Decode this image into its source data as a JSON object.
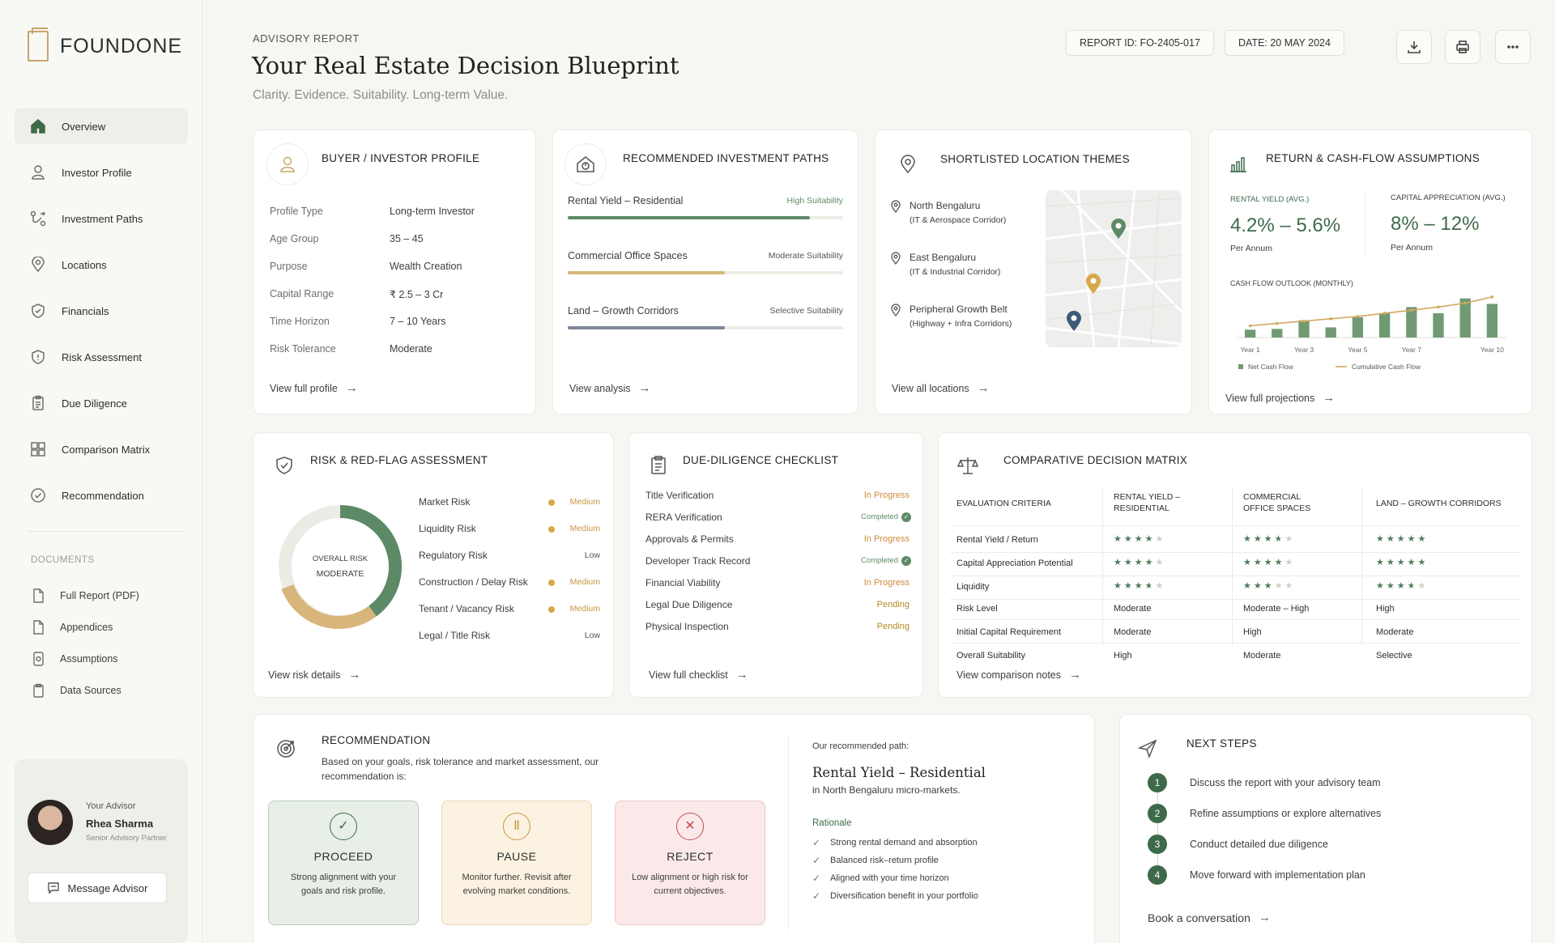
{
  "brand": {
    "name": "FOUNDONE"
  },
  "nav": {
    "items": [
      {
        "label": "Overview",
        "icon": "home-icon"
      },
      {
        "label": "Investor Profile",
        "icon": "user-icon"
      },
      {
        "label": "Investment Paths",
        "icon": "paths-icon"
      },
      {
        "label": "Locations",
        "icon": "location-pin-icon"
      },
      {
        "label": "Financials",
        "icon": "shield-check-icon"
      },
      {
        "label": "Risk Assessment",
        "icon": "shield-alert-icon"
      },
      {
        "label": "Due Diligence",
        "icon": "clipboard-icon"
      },
      {
        "label": "Comparison Matrix",
        "icon": "grid-icon"
      },
      {
        "label": "Recommendation",
        "icon": "check-circle-icon"
      }
    ],
    "documents_label": "DOCUMENTS",
    "documents": [
      {
        "label": "Full Report (PDF)"
      },
      {
        "label": "Appendices"
      },
      {
        "label": "Assumptions"
      },
      {
        "label": "Data Sources"
      }
    ]
  },
  "advisor": {
    "label": "Your Advisor",
    "name": "Rhea Sharma",
    "role": "Senior Advisory Partner",
    "button": "Message Advisor"
  },
  "header": {
    "eyebrow": "ADVISORY REPORT",
    "title": "Your Real Estate Decision Blueprint",
    "subtitle": "Clarity. Evidence. Suitability. Long-term Value.",
    "report_id": "REPORT ID: FO-2405-017",
    "date": "DATE: 20 MAY 2024"
  },
  "profile": {
    "title": "BUYER / INVESTOR PROFILE",
    "rows": [
      {
        "k": "Profile Type",
        "v": "Long-term Investor"
      },
      {
        "k": "Age Group",
        "v": "35 – 45"
      },
      {
        "k": "Purpose",
        "v": "Wealth Creation"
      },
      {
        "k": "Capital Range",
        "v": "₹ 2.5 – 3 Cr"
      },
      {
        "k": "Time Horizon",
        "v": "7 – 10 Years"
      },
      {
        "k": "Risk Tolerance",
        "v": "Moderate"
      }
    ],
    "link": "View full profile"
  },
  "paths": {
    "title": "RECOMMENDED INVESTMENT PATHS",
    "items": [
      {
        "name": "Rental Yield – Residential",
        "suitability": "High Suitability",
        "level": 0.88,
        "color": "#5d8a66",
        "sucolor": "#5d8a66"
      },
      {
        "name": "Commercial Office Spaces",
        "suitability": "Moderate Suitability",
        "level": 0.57,
        "color": "#d8b57a",
        "sucolor": "#555"
      },
      {
        "name": "Land – Growth Corridors",
        "suitability": "Selective Suitability",
        "level": 0.57,
        "color": "#7e869a",
        "sucolor": "#555"
      }
    ],
    "link": "View analysis"
  },
  "locations": {
    "title": "SHORTLISTED LOCATION THEMES",
    "items": [
      {
        "name": "North Bengaluru",
        "sub": "(IT & Aerospace Corridor)"
      },
      {
        "name": "East Bengaluru",
        "sub": "(IT & Industrial Corridor)"
      },
      {
        "name": "Peripheral Growth Belt",
        "sub": "(Highway + Infra Corridors)"
      }
    ],
    "link": "View all locations"
  },
  "returns": {
    "title": "RETURN & CASH-FLOW ASSUMPTIONS",
    "yield_label": "RENTAL YIELD (AVG.)",
    "yield_value": "4.2% – 5.6%",
    "yield_unit": "Per Annum",
    "apprec_label": "CAPITAL APPRECIATION (AVG.)",
    "apprec_value": "8% – 12%",
    "apprec_unit": "Per Annum",
    "chart_title": "CASH FLOW OUTLOOK (MONTHLY)",
    "link": "View full projections"
  },
  "chart_data": {
    "type": "bar",
    "title": "CASH FLOW OUTLOOK (MONTHLY)",
    "categories": [
      "Year 1",
      "Year 2",
      "Year 3",
      "Year 4",
      "Year 5",
      "Year 6",
      "Year 7",
      "Year 8",
      "Year 9",
      "Year 10"
    ],
    "tick_labels": [
      "Year 1",
      "Year 3",
      "Year 5",
      "Year 7",
      "Year 10"
    ],
    "series": [
      {
        "name": "Net Cash Flow",
        "type": "bar",
        "color": "#6f9a72",
        "values": [
          1.0,
          1.1,
          2.2,
          1.3,
          2.6,
          3.1,
          3.9,
          3.1,
          5.0,
          4.3
        ]
      },
      {
        "name": "Cumulative Cash Flow",
        "type": "line",
        "color": "#d4a760",
        "values": [
          1.5,
          1.8,
          2.1,
          2.4,
          2.7,
          3.1,
          3.5,
          3.9,
          4.4,
          5.2
        ]
      }
    ],
    "ylim": [
      0,
      6
    ],
    "legend": "bottom"
  },
  "risk": {
    "title": "RISK & RED-FLAG ASSESSMENT",
    "center_top": "OVERALL RISK",
    "center_bottom": "MODERATE",
    "items": [
      {
        "name": "Market Risk",
        "level": "Medium",
        "dot": true
      },
      {
        "name": "Liquidity Risk",
        "level": "Medium",
        "dot": true
      },
      {
        "name": "Regulatory Risk",
        "level": "Low",
        "dot": false
      },
      {
        "name": "Construction / Delay Risk",
        "level": "Medium",
        "dot": true
      },
      {
        "name": "Tenant / Vacancy Risk",
        "level": "Medium",
        "dot": true
      },
      {
        "name": "Legal / Title Risk",
        "level": "Low",
        "dot": false
      }
    ],
    "link": "View risk details"
  },
  "diligence": {
    "title": "DUE-DILIGENCE CHECKLIST",
    "items": [
      {
        "name": "Title Verification",
        "status": "In Progress",
        "kind": "progress"
      },
      {
        "name": "RERA Verification",
        "status": "Completed",
        "kind": "done"
      },
      {
        "name": "Approvals & Permits",
        "status": "In Progress",
        "kind": "progress"
      },
      {
        "name": "Developer Track Record",
        "status": "Completed",
        "kind": "done"
      },
      {
        "name": "Financial Viability",
        "status": "In Progress",
        "kind": "progress"
      },
      {
        "name": "Legal Due Diligence",
        "status": "Pending",
        "kind": "pending"
      },
      {
        "name": "Physical Inspection",
        "status": "Pending",
        "kind": "pending"
      }
    ],
    "link": "View full checklist"
  },
  "matrix": {
    "title": "COMPARATIVE DECISION MATRIX",
    "criteria_header": "EVALUATION CRITERIA",
    "col_headers": [
      "RENTAL YIELD –\nRESIDENTIAL",
      "COMMERCIAL\nOFFICE SPACES",
      "LAND – GROWTH CORRIDORS"
    ],
    "star_rows": [
      {
        "label": "Rental Yield / Return",
        "stars": [
          4,
          3.5,
          5
        ]
      },
      {
        "label": "Capital Appreciation Potential",
        "stars": [
          4,
          4,
          5
        ]
      },
      {
        "label": "Liquidity",
        "stars": [
          3.5,
          3,
          3.5
        ]
      }
    ],
    "text_rows": [
      {
        "label": "Risk Level",
        "values": [
          "Moderate",
          "Moderate – High",
          "High"
        ]
      },
      {
        "label": "Initial Capital Requirement",
        "values": [
          "Moderate",
          "High",
          "Moderate"
        ]
      },
      {
        "label": "Overall Suitability",
        "values": [
          "High",
          "Moderate",
          "Selective"
        ]
      }
    ],
    "link": "View comparison notes"
  },
  "recommendation": {
    "title": "RECOMMENDATION",
    "intro": "Based on your goals, risk tolerance and market assessment, our recommendation is:",
    "options": [
      {
        "label": "PROCEED",
        "desc": "Strong alignment with your goals and risk profile.",
        "bg": "#e7efe7",
        "border": "#b9cdb9",
        "icon": "#3e6a4a"
      },
      {
        "label": "PAUSE",
        "desc": "Monitor further. Revisit after evolving market conditions.",
        "bg": "#fbf2e2",
        "border": "#ead7b3",
        "icon": "#c9963f"
      },
      {
        "label": "REJECT",
        "desc": "Low alignment or high risk for current objectives.",
        "bg": "#fbe9e9",
        "border": "#efc7c7",
        "icon": "#c0504d"
      }
    ],
    "path_label": "Our recommended path:",
    "path_title": "Rental Yield – Residential",
    "path_sub": "in North Bengaluru micro-markets.",
    "rationale_label": "Rationale",
    "rationale": [
      "Strong rental demand and absorption",
      "Balanced risk–return profile",
      "Aligned with your time horizon",
      "Diversification benefit in your portfolio"
    ]
  },
  "next_steps": {
    "title": "NEXT STEPS",
    "items": [
      {
        "n": "1",
        "text": "Discuss the report with your advisory team"
      },
      {
        "n": "2",
        "text": "Refine assumptions or explore alternatives"
      },
      {
        "n": "3",
        "text": "Conduct detailed due diligence"
      },
      {
        "n": "4",
        "text": "Move forward with implementation plan"
      }
    ],
    "link": "Book a conversation"
  }
}
